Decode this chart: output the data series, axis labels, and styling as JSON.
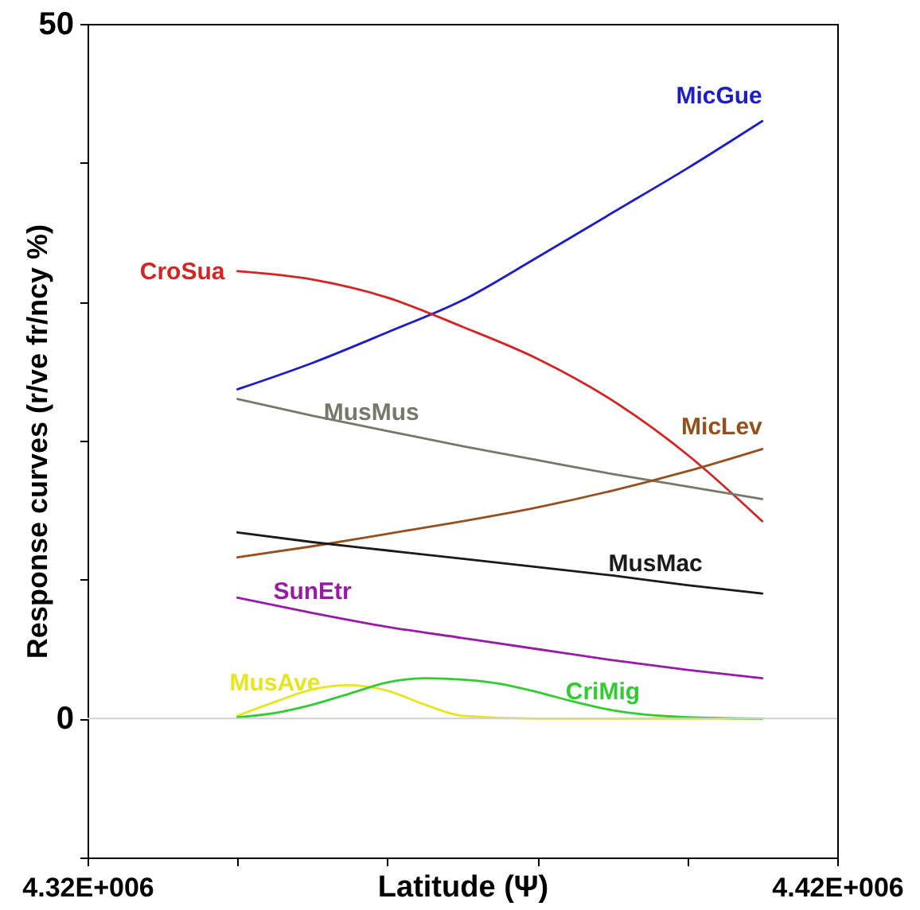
{
  "chart_data": {
    "type": "line",
    "xlabel": "Latitude (Ψ)",
    "ylabel": "Response curves (r/ve fr/ncy %)",
    "xlim": [
      4320000,
      4420000
    ],
    "xticks": [
      {
        "value": 4320000,
        "label": "4.32E+006"
      },
      {
        "value": 4340000,
        "label": null
      },
      {
        "value": 4360000,
        "label": null
      },
      {
        "value": 4380000,
        "label": null
      },
      {
        "value": 4400000,
        "label": null
      },
      {
        "value": 4420000,
        "label": "4.42E+006"
      }
    ],
    "ylim": [
      -10,
      50
    ],
    "yticks": [
      {
        "value": -10,
        "label": null
      },
      0,
      {
        "value": 10,
        "label": null
      },
      {
        "value": 20,
        "label": null
      },
      {
        "value": 30,
        "label": null
      },
      {
        "value": 40,
        "label": null
      },
      50
    ],
    "grid": false,
    "marker": "none",
    "line_style": "solid",
    "ref_lines": [
      {
        "axis": "y",
        "value": 0,
        "color": "#d0d0d0"
      }
    ],
    "x": [
      4340000,
      4350000,
      4360000,
      4370000,
      4380000,
      4390000,
      4400000,
      4410000
    ],
    "series": [
      {
        "name": "MicGue",
        "color": "#1c1cc8",
        "values": [
          23.7,
          25.6,
          27.8,
          30.1,
          33.2,
          36.4,
          39.6,
          43.0
        ]
      },
      {
        "name": "CroSua",
        "color": "#d42424",
        "values": [
          32.2,
          31.6,
          30.3,
          28.2,
          25.9,
          22.9,
          19.0,
          14.2
        ]
      },
      {
        "name": "MusMus",
        "color": "#77776a",
        "values": [
          23.0,
          21.8,
          20.7,
          19.6,
          18.6,
          17.6,
          16.7,
          15.8
        ]
      },
      {
        "name": "MicLev",
        "color": "#96501e",
        "values": [
          11.6,
          12.4,
          13.3,
          14.2,
          15.2,
          16.4,
          17.8,
          19.4
        ]
      },
      {
        "name": "MusMac",
        "color": "#1a1a1a",
        "values": [
          13.4,
          12.7,
          12.1,
          11.5,
          10.9,
          10.3,
          9.6,
          9.0
        ]
      },
      {
        "name": "SunEtr",
        "color": "#9a1aa8",
        "values": [
          8.7,
          7.6,
          6.6,
          5.8,
          5.0,
          4.2,
          3.5,
          2.9
        ]
      },
      {
        "name": "MusAve",
        "color": "#e6e620",
        "x": [
          4340000,
          4345000,
          4350000,
          4355000,
          4360000,
          4365000,
          4370000,
          4380000,
          4390000,
          4400000,
          4410000
        ],
        "values": [
          0.2,
          1.2,
          2.1,
          2.4,
          2.0,
          1.0,
          0.2,
          0,
          0,
          0,
          0
        ]
      },
      {
        "name": "CriMig",
        "color": "#30cc30",
        "x": [
          4340000,
          4345000,
          4350000,
          4355000,
          4360000,
          4365000,
          4370000,
          4375000,
          4380000,
          4385000,
          4390000,
          4400000,
          4410000
        ],
        "values": [
          0.1,
          0.4,
          1.0,
          1.8,
          2.6,
          2.9,
          2.8,
          2.5,
          1.9,
          1.2,
          0.6,
          0.1,
          0
        ]
      }
    ]
  }
}
